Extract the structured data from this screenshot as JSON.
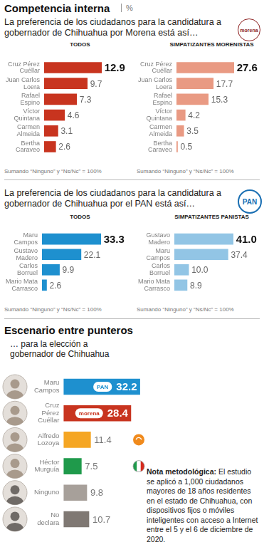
{
  "header": {
    "title": "Competencia interna",
    "unit": "%"
  },
  "sections": [
    {
      "text": "La preferencia de los ciudadanos para la candidatura a gobernador de Chihuahua por Morena está así…",
      "logo": "morena"
    },
    {
      "text": "La preferencia de los ciudadanos para la candidatura a gobernador de Chihuahua por el PAN está así…",
      "logo": "PAN"
    }
  ],
  "scenario": {
    "title": "Escenario entre punteros",
    "subtitle": "… para la elección a gobernador de Chihuahua"
  },
  "note": {
    "label": "Nota metodológica:",
    "text": "El estudio se aplicó a 1,000 ciudadanos mayores de 18 años residentes en el estado de Chihuahua, con dispositivos fijos o móviles inteligentes con acceso a Internet entre el 5 y el 6 de diciembre de 2020."
  },
  "chart_data": [
    {
      "type": "bar",
      "orientation": "horizontal",
      "title": "TODOS",
      "categories": [
        [
          "Cruz Pérez",
          "Cuéllar"
        ],
        [
          "Juan Carlos",
          "Loera"
        ],
        [
          "Rafael",
          "Espino"
        ],
        [
          "Víctor",
          "Quintana"
        ],
        [
          "Carmen",
          "Almeida"
        ],
        [
          "Bertha",
          "Caraveo"
        ]
      ],
      "values": [
        12.9,
        9.7,
        7.3,
        4.6,
        3.1,
        2.6
      ],
      "color": "#c8341f",
      "data_labels": true,
      "tick_labels": "y",
      "grid": false,
      "annotations": [
        "Sumando “Ninguno” y “Ns/Nc” = 100%"
      ]
    },
    {
      "type": "bar",
      "orientation": "horizontal",
      "title": "SIMPATIZANTES MORENISTAS",
      "categories": [
        [
          "Cruz Pérez",
          "Cuéllar"
        ],
        [
          "Juan Carlos",
          "Loera"
        ],
        [
          "Rafael",
          "Espino"
        ],
        [
          "Víctor",
          "Quintana"
        ],
        [
          "Carmen",
          "Almeida"
        ],
        [
          "Bertha",
          "Caraveo"
        ]
      ],
      "values": [
        27.6,
        17.7,
        15.3,
        4.2,
        3.5,
        0.5
      ],
      "color": "#e99a83",
      "data_labels": true,
      "tick_labels": "y",
      "grid": false,
      "annotations": [
        "Sumando “Ninguno” y “Ns/Nc” = 100%"
      ]
    },
    {
      "type": "bar",
      "orientation": "horizontal",
      "title": "TODOS",
      "categories": [
        [
          "Maru",
          "Campos"
        ],
        [
          "Gustavo",
          "Madero"
        ],
        [
          "Carlos",
          "Borruel"
        ],
        [
          "Mario Mata",
          "Carrasco"
        ]
      ],
      "values": [
        33.3,
        22.1,
        9.9,
        2.6
      ],
      "color": "#1e90cf",
      "data_labels": true,
      "tick_labels": "y",
      "grid": false,
      "annotations": [
        "Sumando “Ninguno” y “Ns/Nc” = 100%"
      ]
    },
    {
      "type": "bar",
      "orientation": "horizontal",
      "title": "SIMPATIZANTES PANISTAS",
      "categories": [
        [
          "Gustavo",
          "Madero"
        ],
        [
          "Maru",
          "Campos"
        ],
        [
          "Carlos",
          "Borruel"
        ],
        [
          "Mario Mata",
          "Carrasco"
        ]
      ],
      "values": [
        41.0,
        37.4,
        10.0,
        8.9
      ],
      "value_labels": [
        "41.0",
        "37.4",
        "10.0",
        "8.9"
      ],
      "color": "#92c5e5",
      "data_labels": true,
      "tick_labels": "y",
      "grid": false,
      "annotations": [
        "Sumando “Ninguno” y “Ns/Nc” = 100%"
      ]
    },
    {
      "type": "bar",
      "orientation": "horizontal",
      "categories": [
        [
          "Maru",
          "Campos"
        ],
        [
          "Cruz",
          "Pérez",
          "Cuéllar"
        ],
        [
          "Alfredo",
          "Lozoya"
        ],
        [
          "Héctor",
          "Murguía"
        ],
        [
          "Ninguno"
        ],
        [
          "No",
          "declara"
        ]
      ],
      "values": [
        32.2,
        28.4,
        11.4,
        7.5,
        9.8,
        10.7
      ],
      "colors": [
        "#1e90cf",
        "#c8341f",
        "#f5a623",
        "#1f9a4b",
        "#a7a09a",
        "#7f7873"
      ],
      "badges": [
        "PAN",
        "morena",
        null,
        null,
        null,
        null
      ],
      "data_labels": true,
      "tick_labels": "y",
      "grid": false
    }
  ]
}
